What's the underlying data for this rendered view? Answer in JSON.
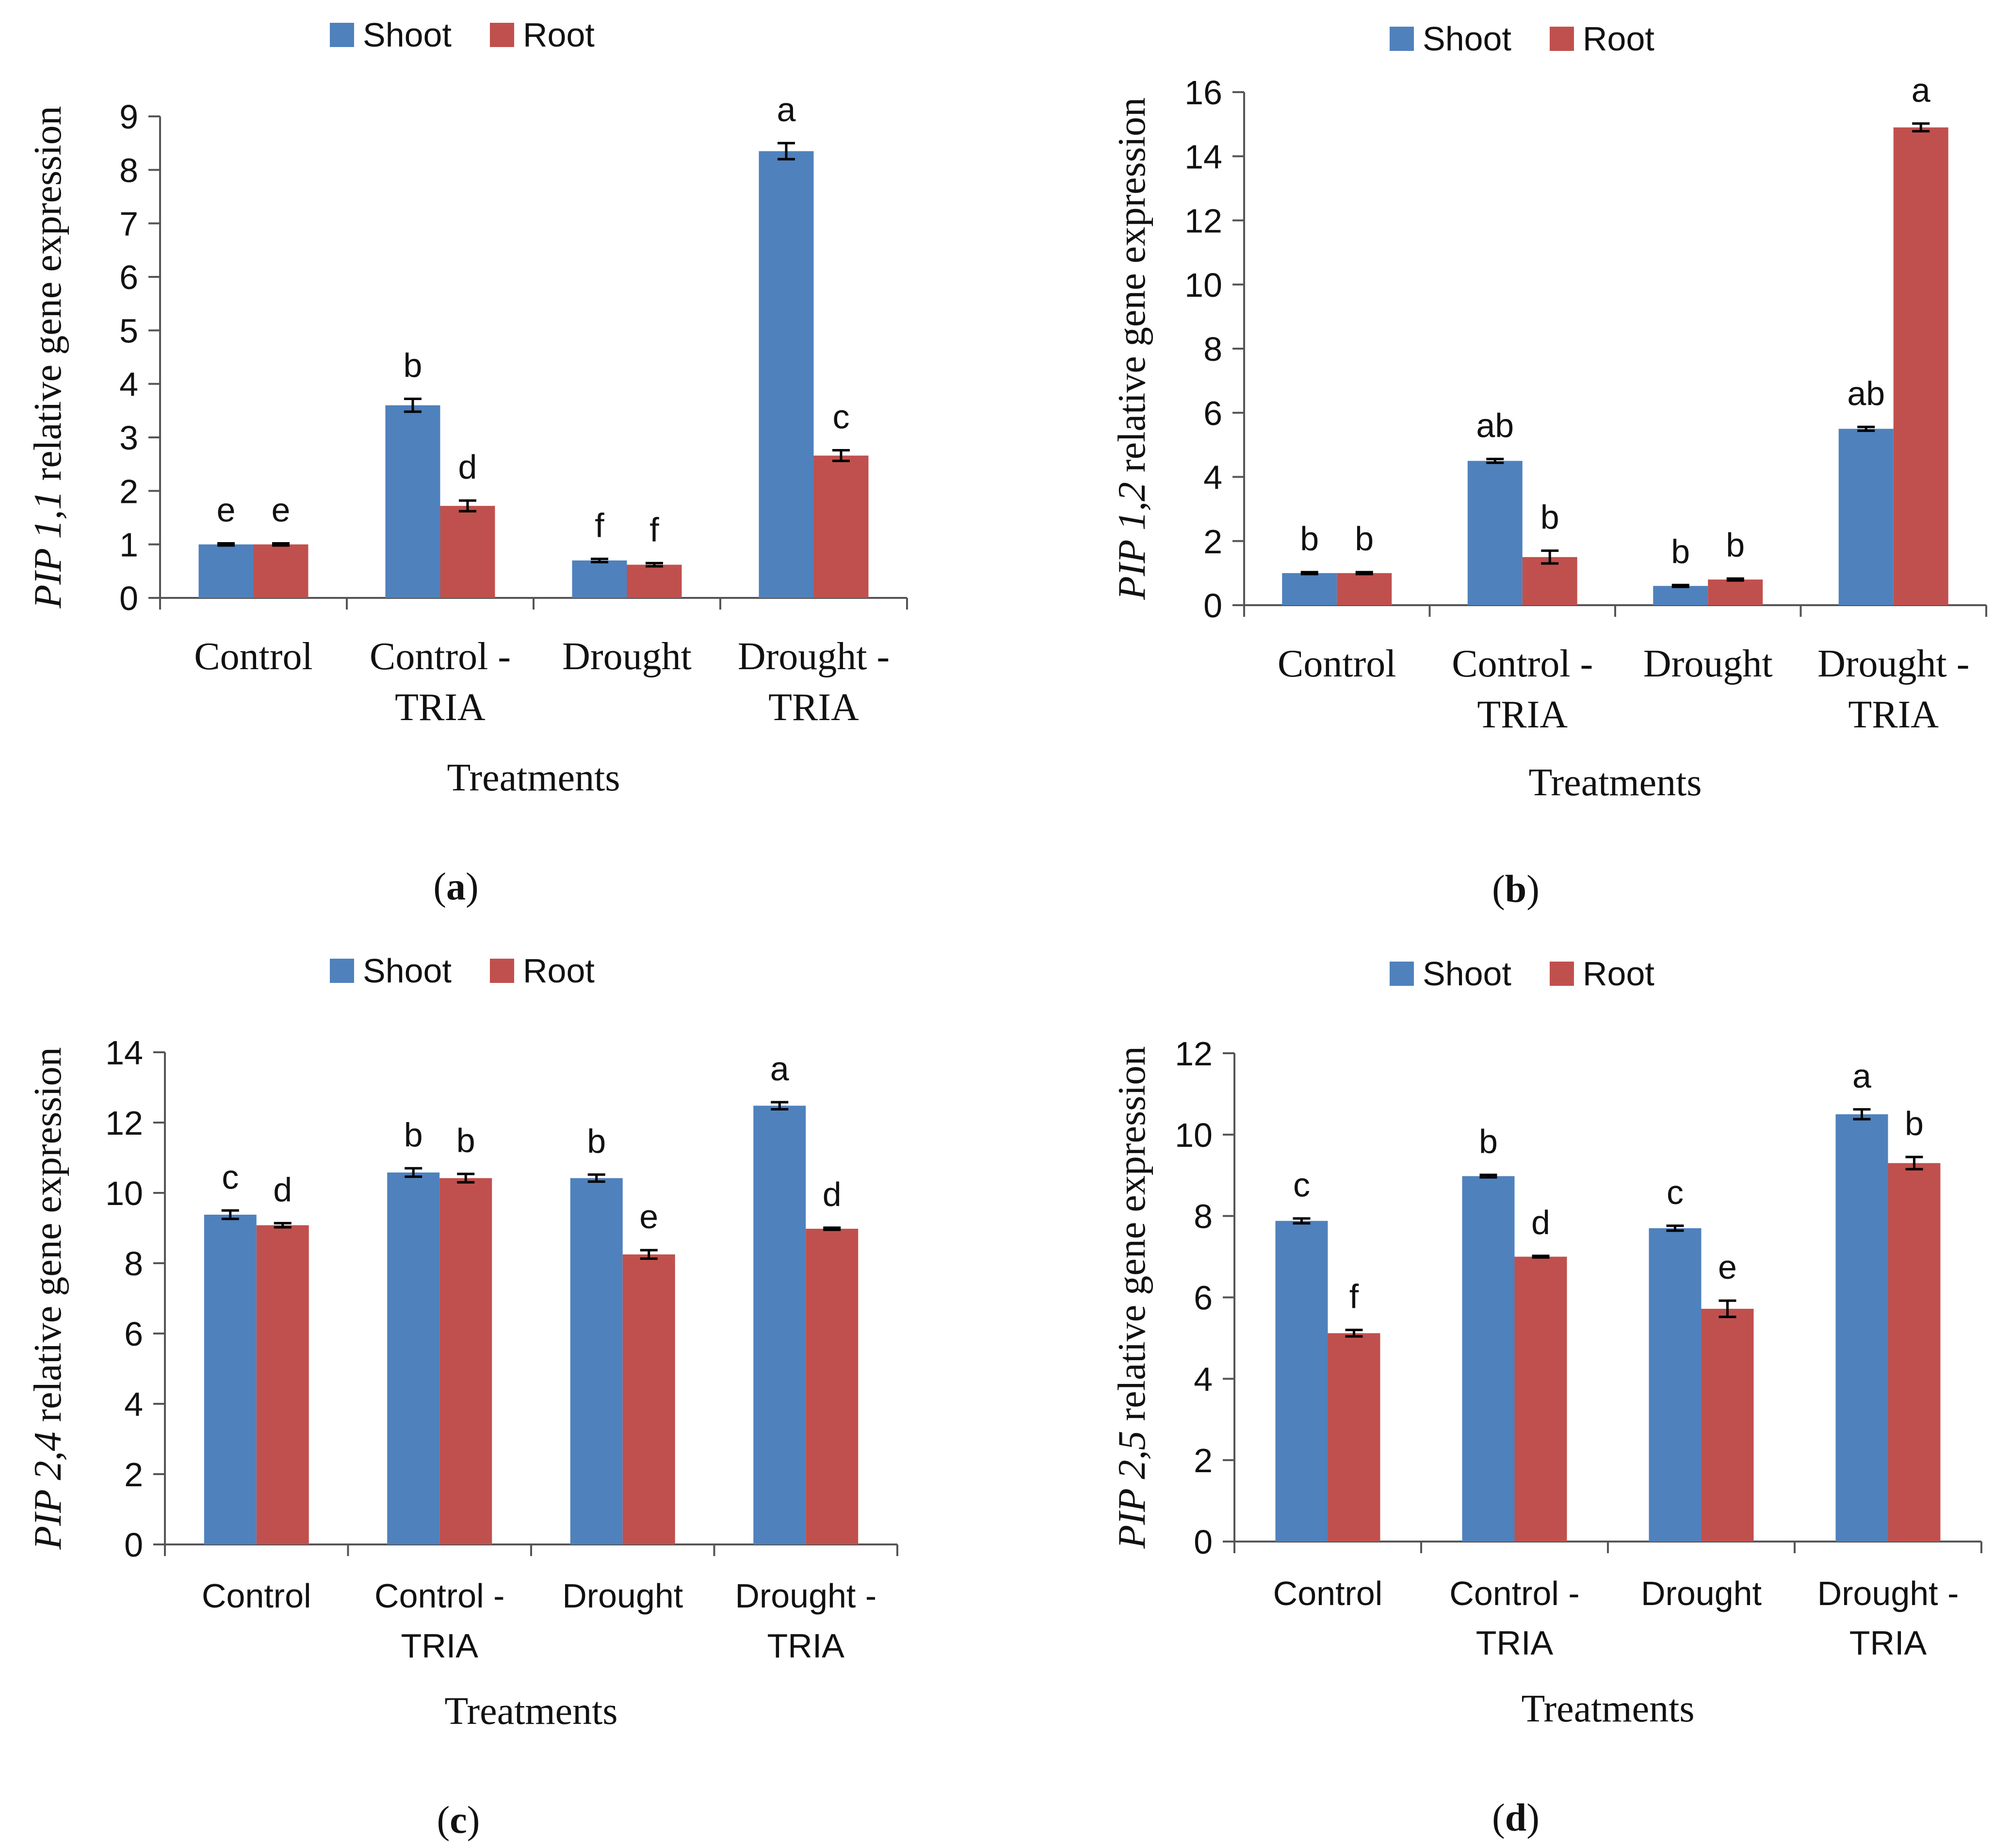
{
  "chart_data": [
    {
      "type": "bar",
      "panel": "a",
      "ylabel_gene": "PIP 1,1",
      "ylabel_rest": " relative gene expression",
      "xlabel": "Treatments",
      "categories": [
        [
          "Control"
        ],
        [
          "Control -",
          "TRIA"
        ],
        [
          "Drought"
        ],
        [
          "Drought -",
          "TRIA"
        ]
      ],
      "ylim": [
        0,
        9
      ],
      "yticks": [
        0,
        1,
        2,
        3,
        4,
        5,
        6,
        7,
        8,
        9
      ],
      "series": [
        {
          "name": "Shoot",
          "values": [
            1.0,
            3.6,
            0.7,
            8.35
          ],
          "errors": [
            0.02,
            0.12,
            0.03,
            0.15
          ],
          "letters": [
            "e",
            "b",
            "f",
            "a"
          ]
        },
        {
          "name": "Root",
          "values": [
            1.0,
            1.72,
            0.62,
            2.66
          ],
          "errors": [
            0.02,
            0.1,
            0.03,
            0.1
          ],
          "letters": [
            "e",
            "d",
            "f",
            "c"
          ]
        }
      ]
    },
    {
      "type": "bar",
      "panel": "b",
      "ylabel_gene": "PIP 1,2",
      "ylabel_rest": " relative gene expression",
      "xlabel": "Treatments",
      "categories": [
        [
          "Control"
        ],
        [
          "Control -",
          "TRIA"
        ],
        [
          "Drought"
        ],
        [
          "Drought -",
          "TRIA"
        ]
      ],
      "ylim": [
        0,
        16
      ],
      "yticks": [
        0,
        2,
        4,
        6,
        8,
        10,
        12,
        14,
        16
      ],
      "series": [
        {
          "name": "Shoot",
          "values": [
            1.0,
            4.5,
            0.6,
            5.5
          ],
          "errors": [
            0.03,
            0.06,
            0.03,
            0.06
          ],
          "letters": [
            "b",
            "ab",
            "b",
            "ab"
          ]
        },
        {
          "name": "Root",
          "values": [
            1.0,
            1.5,
            0.8,
            14.9
          ],
          "errors": [
            0.03,
            0.2,
            0.03,
            0.12
          ],
          "letters": [
            "b",
            "b",
            "b",
            "a"
          ]
        }
      ]
    },
    {
      "type": "bar",
      "panel": "c",
      "ylabel_gene": "PIP 2,4",
      "ylabel_rest": " relative gene expression",
      "xlabel": "Treatments",
      "categories": [
        [
          "Control"
        ],
        [
          "Control -",
          "TRIA"
        ],
        [
          "Drought"
        ],
        [
          "Drought -",
          "TRIA"
        ]
      ],
      "ylim": [
        0,
        14
      ],
      "yticks": [
        0,
        2,
        4,
        6,
        8,
        10,
        12,
        14
      ],
      "series": [
        {
          "name": "Shoot",
          "values": [
            9.38,
            10.58,
            10.42,
            12.48
          ],
          "errors": [
            0.12,
            0.12,
            0.1,
            0.1
          ],
          "letters": [
            "c",
            "b",
            "b",
            "a"
          ]
        },
        {
          "name": "Root",
          "values": [
            9.08,
            10.42,
            8.25,
            8.98
          ],
          "errors": [
            0.06,
            0.12,
            0.12,
            0.03
          ],
          "letters": [
            "d",
            "b",
            "e",
            "d"
          ]
        }
      ]
    },
    {
      "type": "bar",
      "panel": "d",
      "ylabel_gene": "PIP 2,5",
      "ylabel_rest": " relative gene expression",
      "xlabel": "Treatments",
      "categories": [
        [
          "Control"
        ],
        [
          "Control -",
          "TRIA"
        ],
        [
          "Drought"
        ],
        [
          "Drought -",
          "TRIA"
        ]
      ],
      "ylim": [
        0,
        12
      ],
      "yticks": [
        0,
        2,
        4,
        6,
        8,
        10,
        12
      ],
      "series": [
        {
          "name": "Shoot",
          "values": [
            7.88,
            8.98,
            7.7,
            10.5
          ],
          "errors": [
            0.06,
            0.03,
            0.06,
            0.12
          ],
          "letters": [
            "c",
            "b",
            "c",
            "a"
          ]
        },
        {
          "name": "Root",
          "values": [
            5.12,
            7.0,
            5.72,
            9.3
          ],
          "errors": [
            0.08,
            0.02,
            0.2,
            0.15
          ],
          "letters": [
            "f",
            "d",
            "e",
            "b"
          ]
        }
      ]
    }
  ],
  "legend": [
    {
      "name": "Shoot",
      "color": "#4f81bd"
    },
    {
      "name": "Root",
      "color": "#c0504d"
    }
  ],
  "panel_labels": [
    "a",
    "b",
    "c",
    "d"
  ]
}
